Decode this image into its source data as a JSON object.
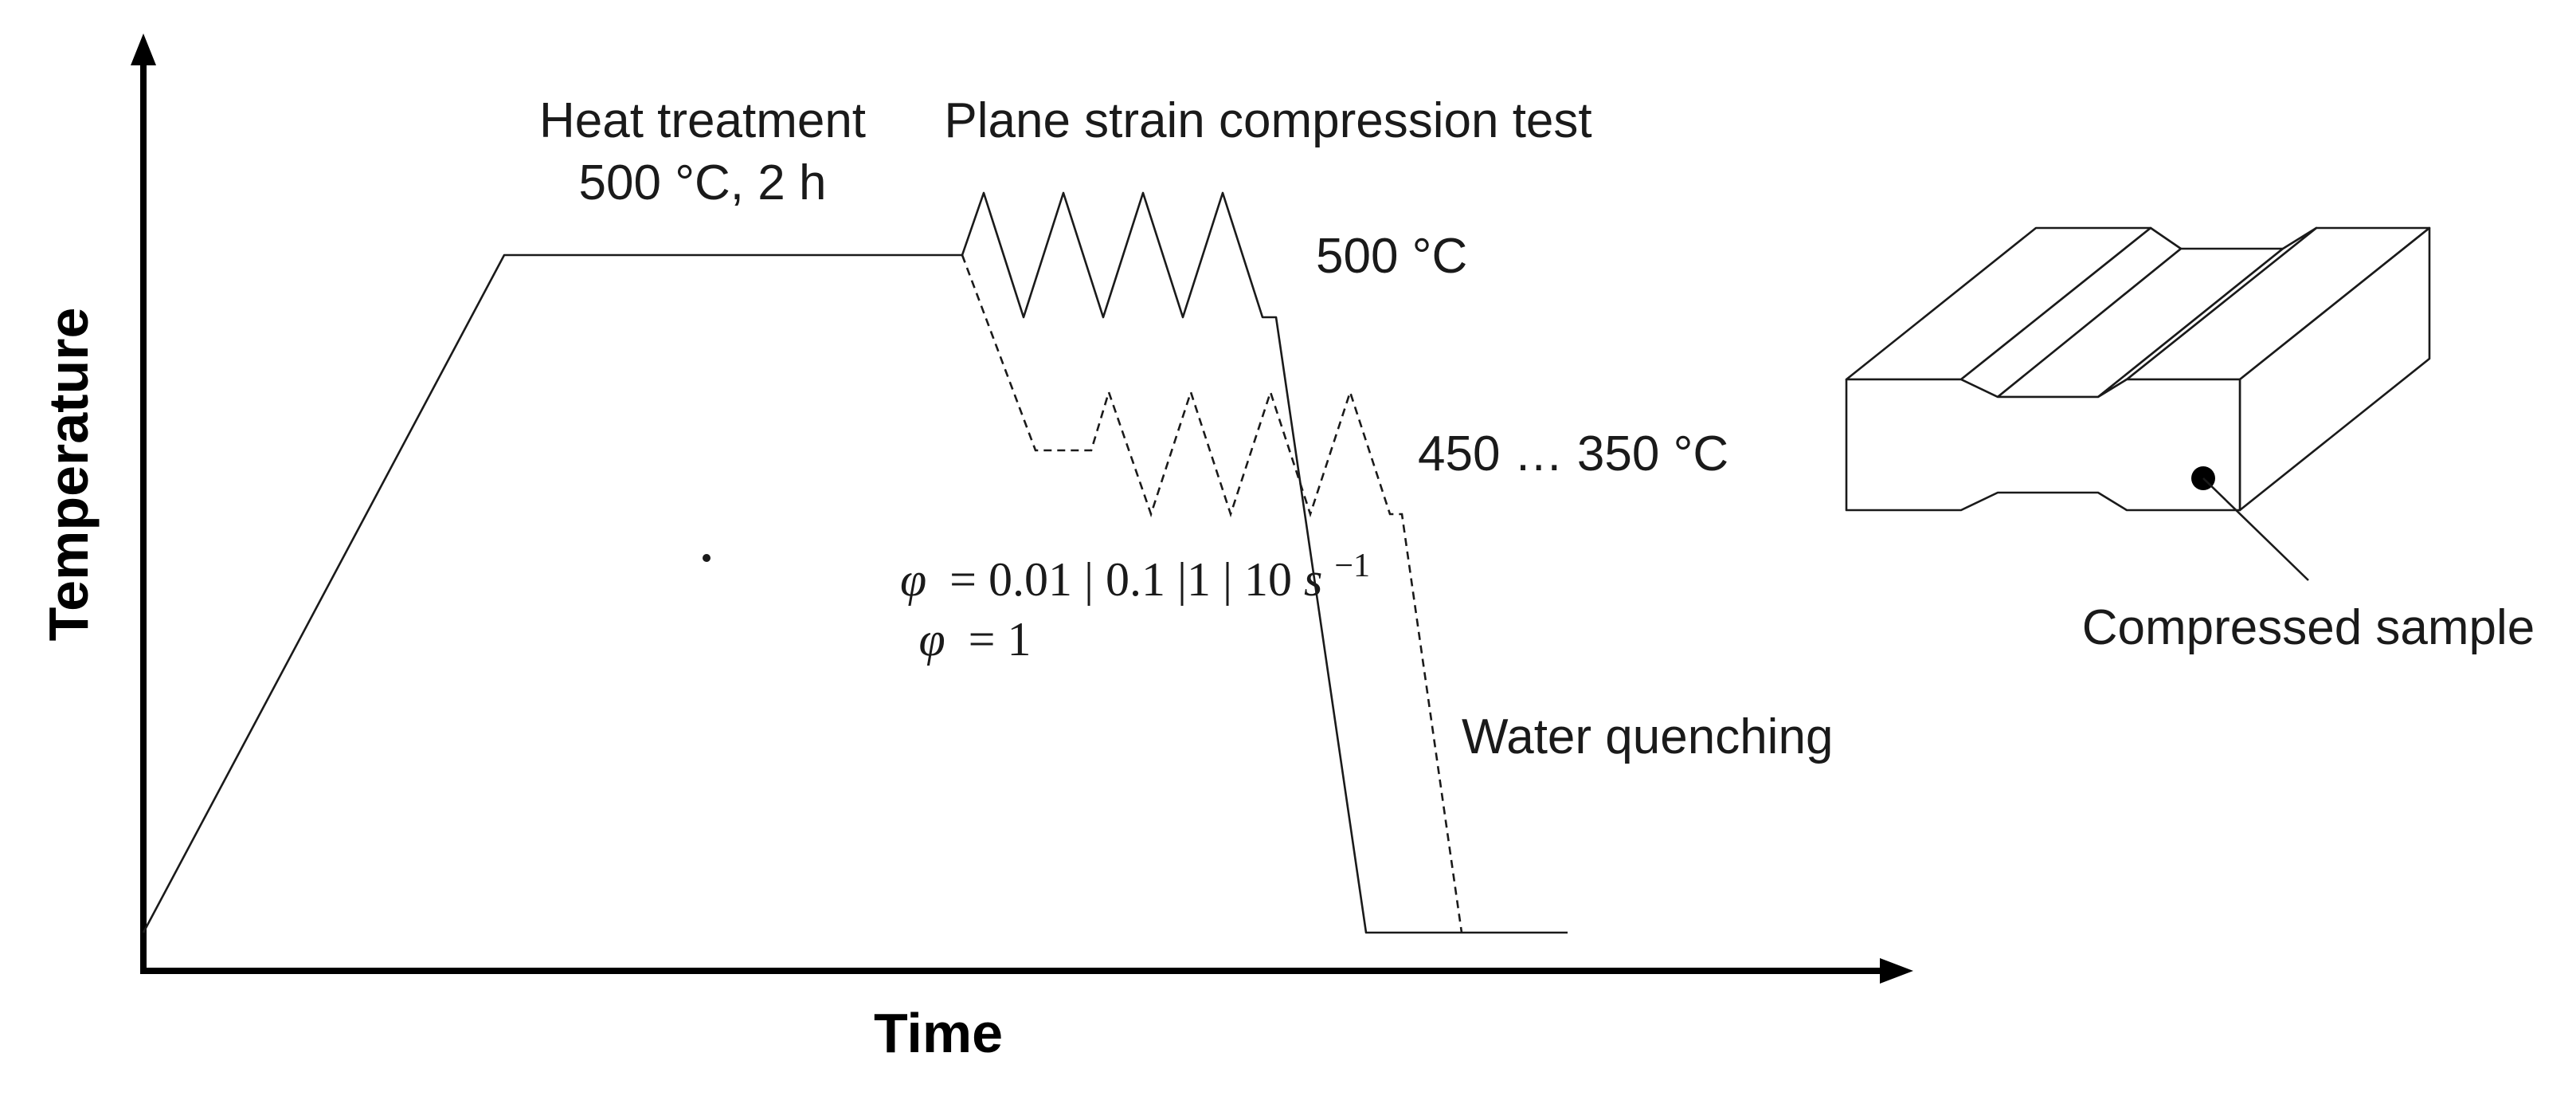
{
  "axes": {
    "x_label": "Time",
    "y_label": "Temperature"
  },
  "labels": {
    "heat_treatment_title": "Heat treatment",
    "heat_treatment_params": "500 °C, 2 h",
    "compression_test": "Plane strain compression test",
    "temp_high": "500 °C",
    "temp_range": "450 … 350 °C",
    "water_quenching": "Water quenching",
    "compressed_sample": "Compressed sample"
  },
  "strain": {
    "rate_symbol": "φ",
    "rate_values": "= 0.01 | 0.1 |1 | 10 ",
    "rate_unit": "s",
    "rate_exponent": "−1",
    "total_symbol": "φ",
    "total_value": "= 1"
  },
  "style": {
    "line_color": "#1a1a1a",
    "axis_color": "#000000"
  }
}
